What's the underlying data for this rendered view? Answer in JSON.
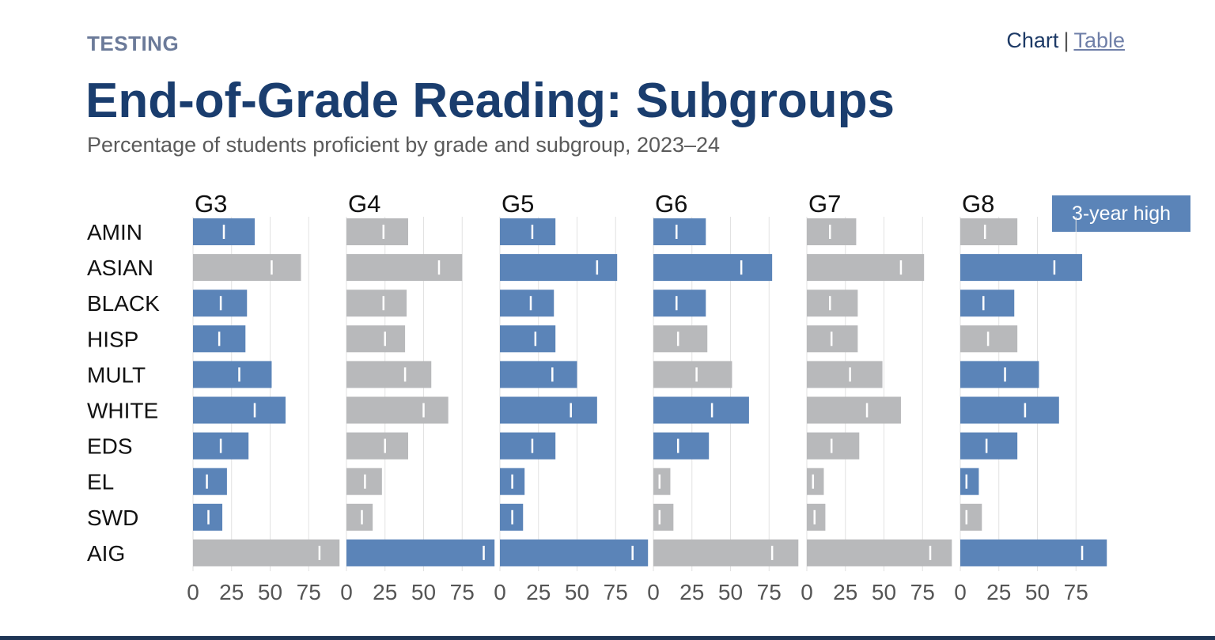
{
  "header": {
    "kicker": "TESTING",
    "view_toggle": {
      "chart": "Chart",
      "separator": "|",
      "table": "Table"
    }
  },
  "chart_data": {
    "type": "bar",
    "orientation": "horizontal",
    "layout": "small-multiples",
    "title": "End-of-Grade Reading: Subgroups",
    "subtitle": "Percentage of students proficient by grade and subgroup, 2023–24",
    "legend": {
      "label": "3-year high",
      "placement": "top-right"
    },
    "colors": {
      "three_year_high": "#5b84b8",
      "other": "#b8b9bb",
      "marker": "#ffffff",
      "grid": "#e2e2e2"
    },
    "categories": [
      "AMIN",
      "ASIAN",
      "BLACK",
      "HISP",
      "MULT",
      "WHITE",
      "EDS",
      "EL",
      "SWD",
      "AIG"
    ],
    "xlim": [
      0,
      100
    ],
    "xticks": [
      0,
      25,
      50,
      75
    ],
    "grid": true,
    "panels": [
      {
        "name": "G3",
        "values": [
          40,
          70,
          35,
          34,
          51,
          60,
          36,
          22,
          19,
          95
        ],
        "markers": [
          20,
          51,
          18,
          17,
          30,
          40,
          18,
          9,
          10,
          82
        ],
        "three_year_high": [
          true,
          false,
          true,
          true,
          true,
          true,
          true,
          true,
          true,
          false
        ]
      },
      {
        "name": "G4",
        "values": [
          40,
          75,
          39,
          38,
          55,
          66,
          40,
          23,
          17,
          96
        ],
        "markers": [
          24,
          60,
          24,
          25,
          38,
          50,
          25,
          12,
          10,
          89
        ],
        "three_year_high": [
          false,
          false,
          false,
          false,
          false,
          false,
          false,
          false,
          false,
          true
        ]
      },
      {
        "name": "G5",
        "values": [
          36,
          76,
          35,
          36,
          50,
          63,
          36,
          16,
          15,
          96
        ],
        "markers": [
          21,
          63,
          20,
          23,
          34,
          46,
          21,
          8,
          8,
          86
        ],
        "three_year_high": [
          true,
          true,
          true,
          true,
          true,
          true,
          true,
          true,
          true,
          true
        ]
      },
      {
        "name": "G6",
        "values": [
          34,
          77,
          34,
          35,
          51,
          62,
          36,
          11,
          13,
          94
        ],
        "markers": [
          15,
          57,
          15,
          16,
          28,
          38,
          16,
          4,
          4,
          77
        ],
        "three_year_high": [
          true,
          true,
          true,
          false,
          false,
          true,
          true,
          false,
          false,
          false
        ]
      },
      {
        "name": "G7",
        "values": [
          32,
          76,
          33,
          33,
          49,
          61,
          34,
          11,
          12,
          94
        ],
        "markers": [
          15,
          61,
          15,
          16,
          28,
          39,
          16,
          4,
          5,
          80
        ],
        "three_year_high": [
          false,
          false,
          false,
          false,
          false,
          false,
          false,
          false,
          false,
          false
        ]
      },
      {
        "name": "G8",
        "values": [
          37,
          79,
          35,
          37,
          51,
          64,
          37,
          12,
          14,
          95
        ],
        "markers": [
          16,
          61,
          15,
          18,
          29,
          42,
          17,
          4,
          4,
          79
        ],
        "three_year_high": [
          false,
          true,
          true,
          false,
          true,
          true,
          true,
          true,
          false,
          true
        ]
      }
    ]
  }
}
